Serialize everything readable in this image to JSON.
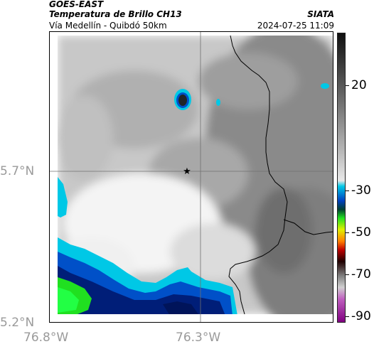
{
  "header": {
    "satellite": "GOES-EAST",
    "product": "Temperatura de Brillo CH13",
    "region": "Vía Medellín - Quibdó 50km",
    "agency": "SIATA",
    "timestamp": "2024-07-25 11:09"
  },
  "axes": {
    "lat_labels": [
      "5.7°N",
      "5.2°N"
    ],
    "lon_labels": [
      "76.8°W",
      "76.3°W"
    ]
  },
  "colorbar": {
    "labels": [
      "20",
      "-30",
      "-50",
      "-70",
      "-90"
    ],
    "values": [
      20,
      -30,
      -50,
      -70,
      -90
    ],
    "range": [
      -93,
      45
    ]
  },
  "marker": {
    "icon": "star-icon"
  },
  "colors": {
    "land_gray": "#9a9a9a",
    "cold_cyan": "#00c8e6",
    "cold_blue": "#0050c8",
    "cold_navy": "#001e78",
    "cold_green": "#20e020",
    "border_line": "#000000"
  }
}
